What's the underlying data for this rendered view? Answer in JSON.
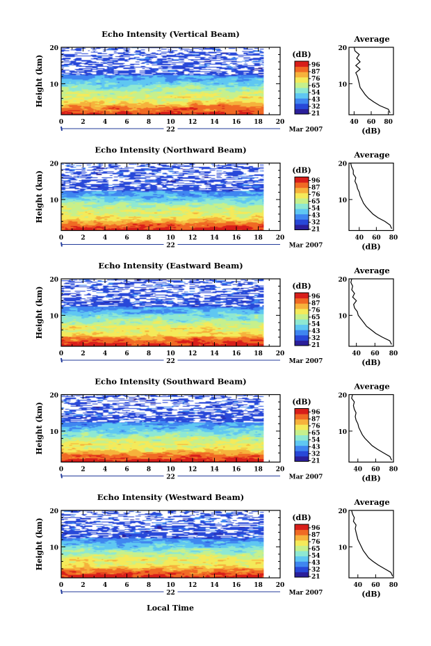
{
  "figure": {
    "xlabel": "Local Time",
    "date_label": "Mar 2007",
    "day_label": "22",
    "colorbar_unit": "(dB)",
    "average_title": "Average",
    "average_xlabel": "(dB)"
  },
  "colorbar": {
    "tick_labels": [
      "96",
      "87",
      "76",
      "65",
      "54",
      "43",
      "32",
      "21"
    ],
    "colors": [
      "#2b1f9a",
      "#2848d8",
      "#3f86f0",
      "#5fc7f2",
      "#8ee8d2",
      "#c6f08c",
      "#f4ea5a",
      "#f6b23c",
      "#f06a24",
      "#d81e1a"
    ]
  },
  "chart_data": [
    {
      "type": "heatmap",
      "title": "Echo Intensity (Vertical Beam)",
      "xlabel": "",
      "ylabel": "Height (km)",
      "x_ticks": [
        "0",
        "2",
        "4",
        "6",
        "8",
        "10",
        "12",
        "14",
        "16",
        "18",
        "20"
      ],
      "y_ticks": [
        "20",
        "10"
      ],
      "xlim": [
        0,
        20
      ],
      "ylim": [
        1.5,
        20
      ],
      "data_xmax": 18.5,
      "zlim": [
        21,
        96
      ],
      "average_profile": {
        "x_ticks": [
          "40",
          "60",
          "80"
        ],
        "y_ticks": [
          "20",
          "10"
        ],
        "xlim": [
          34,
          86
        ],
        "ylim": [
          1.5,
          20
        ],
        "height_km": [
          2,
          3,
          4,
          5,
          6,
          7,
          8,
          9,
          10,
          11,
          12,
          13,
          14,
          15,
          16,
          17,
          18,
          19,
          20
        ],
        "db": [
          82,
          80,
          70,
          63,
          57,
          53,
          50,
          47,
          46,
          45,
          44,
          42,
          47,
          42,
          47,
          43,
          46,
          41,
          40
        ]
      }
    },
    {
      "type": "heatmap",
      "title": "Echo Intensity (Northward Beam)",
      "xlabel": "",
      "ylabel": "Height (km)",
      "x_ticks": [
        "0",
        "2",
        "4",
        "6",
        "8",
        "10",
        "12",
        "14",
        "16",
        "18",
        "20"
      ],
      "y_ticks": [
        "20",
        "10"
      ],
      "xlim": [
        0,
        20
      ],
      "ylim": [
        1.5,
        20
      ],
      "data_xmax": 18.5,
      "zlim": [
        21,
        96
      ],
      "average_profile": {
        "x_ticks": [
          "40",
          "60",
          "80"
        ],
        "y_ticks": [
          "20",
          "10"
        ],
        "xlim": [
          28,
          80
        ],
        "ylim": [
          1.5,
          20
        ],
        "height_km": [
          2,
          3,
          4,
          5,
          6,
          7,
          8,
          9,
          10,
          11,
          12,
          13,
          14,
          15,
          16,
          17,
          18,
          19,
          20
        ],
        "db": [
          78,
          76,
          70,
          62,
          56,
          52,
          48,
          45,
          43,
          41,
          40,
          38,
          37,
          35,
          36,
          33,
          33,
          31,
          30
        ]
      }
    },
    {
      "type": "heatmap",
      "title": "Echo Intensity (Eastward Beam)",
      "xlabel": "",
      "ylabel": "Height (km)",
      "x_ticks": [
        "0",
        "2",
        "4",
        "6",
        "8",
        "10",
        "12",
        "14",
        "16",
        "18",
        "20"
      ],
      "y_ticks": [
        "20",
        "10"
      ],
      "xlim": [
        0,
        20
      ],
      "ylim": [
        1.5,
        20
      ],
      "data_xmax": 18.5,
      "zlim": [
        21,
        96
      ],
      "average_profile": {
        "x_ticks": [
          "40",
          "60",
          "80"
        ],
        "y_ticks": [
          "20",
          "10"
        ],
        "xlim": [
          32,
          80
        ],
        "ylim": [
          1.5,
          20
        ],
        "height_km": [
          2,
          3,
          4,
          5,
          6,
          7,
          8,
          9,
          10,
          11,
          12,
          13,
          14,
          15,
          16,
          17,
          18,
          19,
          20
        ],
        "db": [
          78,
          76,
          68,
          61,
          56,
          51,
          48,
          45,
          42,
          41,
          38,
          37,
          40,
          36,
          38,
          35,
          36,
          34,
          35
        ]
      }
    },
    {
      "type": "heatmap",
      "title": "Echo Intensity (Southward Beam)",
      "xlabel": "",
      "ylabel": "Height (km)",
      "x_ticks": [
        "0",
        "2",
        "4",
        "6",
        "8",
        "10",
        "12",
        "14",
        "16",
        "18",
        "20"
      ],
      "y_ticks": [
        "20",
        "10"
      ],
      "xlim": [
        0,
        20
      ],
      "ylim": [
        1.5,
        20
      ],
      "data_xmax": 18.5,
      "zlim": [
        21,
        96
      ],
      "average_profile": {
        "x_ticks": [
          "40",
          "60",
          "80"
        ],
        "y_ticks": [
          "20",
          "10"
        ],
        "xlim": [
          30,
          80
        ],
        "ylim": [
          1.5,
          20
        ],
        "height_km": [
          2,
          3,
          4,
          5,
          6,
          7,
          8,
          9,
          10,
          11,
          12,
          13,
          14,
          15,
          16,
          17,
          18,
          19,
          20
        ],
        "db": [
          78,
          76,
          69,
          62,
          56,
          52,
          48,
          45,
          43,
          41,
          40,
          38,
          37,
          38,
          36,
          35,
          36,
          33,
          34
        ]
      }
    },
    {
      "type": "heatmap",
      "title": "Echo Intensity (Westward Beam)",
      "xlabel": "",
      "ylabel": "Height (km)",
      "x_ticks": [
        "0",
        "2",
        "4",
        "6",
        "8",
        "10",
        "12",
        "14",
        "16",
        "18",
        "20"
      ],
      "y_ticks": [
        "20",
        "10"
      ],
      "xlim": [
        0,
        20
      ],
      "ylim": [
        1.5,
        20
      ],
      "data_xmax": 18.5,
      "zlim": [
        21,
        96
      ],
      "average_profile": {
        "x_ticks": [
          "40",
          "60",
          "80"
        ],
        "y_ticks": [
          "20",
          "10"
        ],
        "xlim": [
          30,
          80
        ],
        "ylim": [
          1.5,
          20
        ],
        "height_km": [
          2,
          3,
          4,
          5,
          6,
          7,
          8,
          9,
          10,
          11,
          12,
          13,
          14,
          15,
          16,
          17,
          18,
          19,
          20
        ],
        "db": [
          79,
          77,
          70,
          63,
          57,
          52,
          49,
          46,
          44,
          42,
          40,
          39,
          38,
          37,
          38,
          35,
          36,
          34,
          33
        ]
      }
    }
  ]
}
